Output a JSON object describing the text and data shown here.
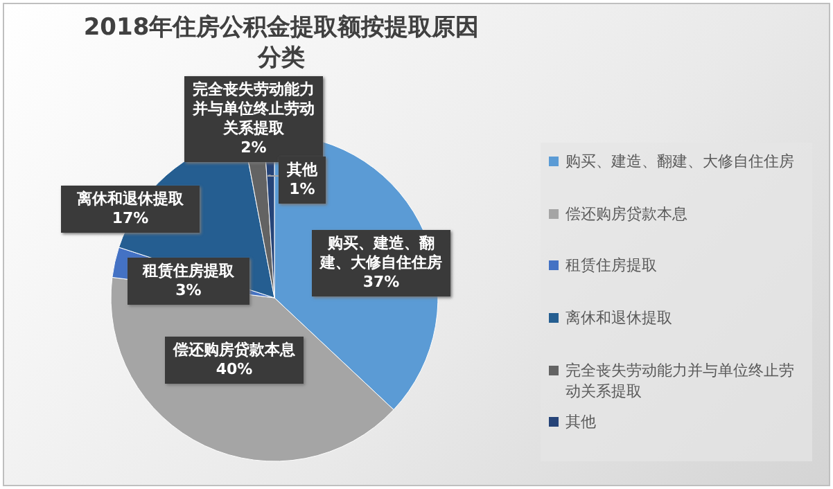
{
  "chart_data": {
    "type": "pie",
    "title": "2018年住房公积金提取额按提取原因分类",
    "categories": [
      "购买、建造、翻建、大修自住住房",
      "偿还购房贷款本息",
      "租赁住房提取",
      "离休和退休提取",
      "完全丧失劳动能力并与单位终止劳动关系提取",
      "其他"
    ],
    "values": [
      37,
      40,
      3,
      17,
      2,
      1
    ],
    "colors": [
      "#5b9bd5",
      "#a5a5a5",
      "#4472c4",
      "#255e91",
      "#636363",
      "#264478"
    ],
    "value_labels": [
      "37%",
      "40%",
      "3%",
      "17%",
      "2%",
      "1%"
    ],
    "legend": "right"
  }
}
